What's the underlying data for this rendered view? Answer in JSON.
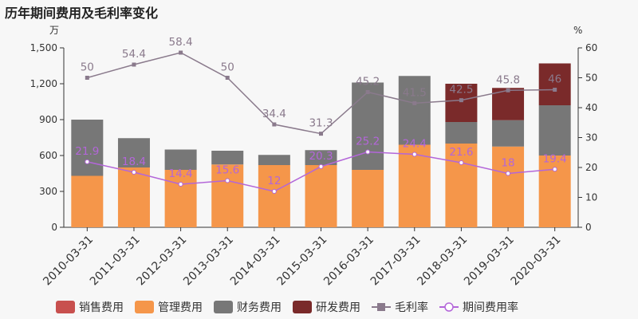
{
  "chart_data": {
    "type": "bar",
    "title": "历年期间费用及毛利率变化",
    "left_unit": "万",
    "right_unit": "%",
    "categories": [
      "2010-03-31",
      "2011-03-31",
      "2012-03-31",
      "2013-03-31",
      "2014-03-31",
      "2015-03-31",
      "2016-03-31",
      "2017-03-31",
      "2018-03-31",
      "2019-03-31",
      "2020-03-31"
    ],
    "ylim": [
      0,
      1500
    ],
    "y_ticks": [
      "0",
      "300",
      "600",
      "900",
      "1,200",
      "1,500"
    ],
    "y2lim": [
      0,
      60
    ],
    "y2_ticks": [
      "0",
      "10",
      "20",
      "30",
      "40",
      "50",
      "60"
    ],
    "stacked": true,
    "series": [
      {
        "name": "销售费用",
        "kind": "bar",
        "color": "#c8504e",
        "values": [
          0,
          0,
          0,
          0,
          0,
          0,
          0,
          0,
          0,
          0,
          0
        ]
      },
      {
        "name": "管理费用",
        "kind": "bar",
        "color": "#f5964a",
        "values": [
          430,
          500,
          480,
          525,
          520,
          520,
          480,
          690,
          700,
          675,
          600
        ]
      },
      {
        "name": "财务费用",
        "kind": "bar",
        "color": "#777777",
        "values": [
          470,
          245,
          170,
          115,
          85,
          125,
          730,
          575,
          180,
          220,
          420
        ]
      },
      {
        "name": "研发费用",
        "kind": "bar",
        "color": "#7a2a2a",
        "values": [
          0,
          0,
          0,
          0,
          0,
          0,
          0,
          0,
          320,
          270,
          350
        ]
      },
      {
        "name": "毛利率",
        "kind": "line",
        "axis": "right",
        "color": "#8a7a8c",
        "marker": "square",
        "values": [
          50,
          54.4,
          58.4,
          50,
          34.4,
          31.3,
          45.2,
          41.5,
          42.5,
          45.8,
          46
        ],
        "labels": [
          "50",
          "54.4",
          "58.4",
          "50",
          "34.4",
          "31.3",
          "45.2",
          "41.5",
          "42.5",
          "45.8",
          "46"
        ]
      },
      {
        "name": "期间费用率",
        "kind": "line",
        "axis": "right",
        "color": "#b366d9",
        "marker": "circle",
        "values": [
          21.9,
          18.4,
          14.4,
          15.6,
          12,
          20.3,
          25.2,
          24.4,
          21.6,
          18,
          19.4
        ],
        "labels": [
          "21.9",
          "18.4",
          "14.4",
          "15.6",
          "12",
          "20.3",
          "25.2",
          "24.4",
          "21.6",
          "18",
          "19.4"
        ]
      }
    ],
    "grid": false,
    "legend_position": "bottom"
  }
}
